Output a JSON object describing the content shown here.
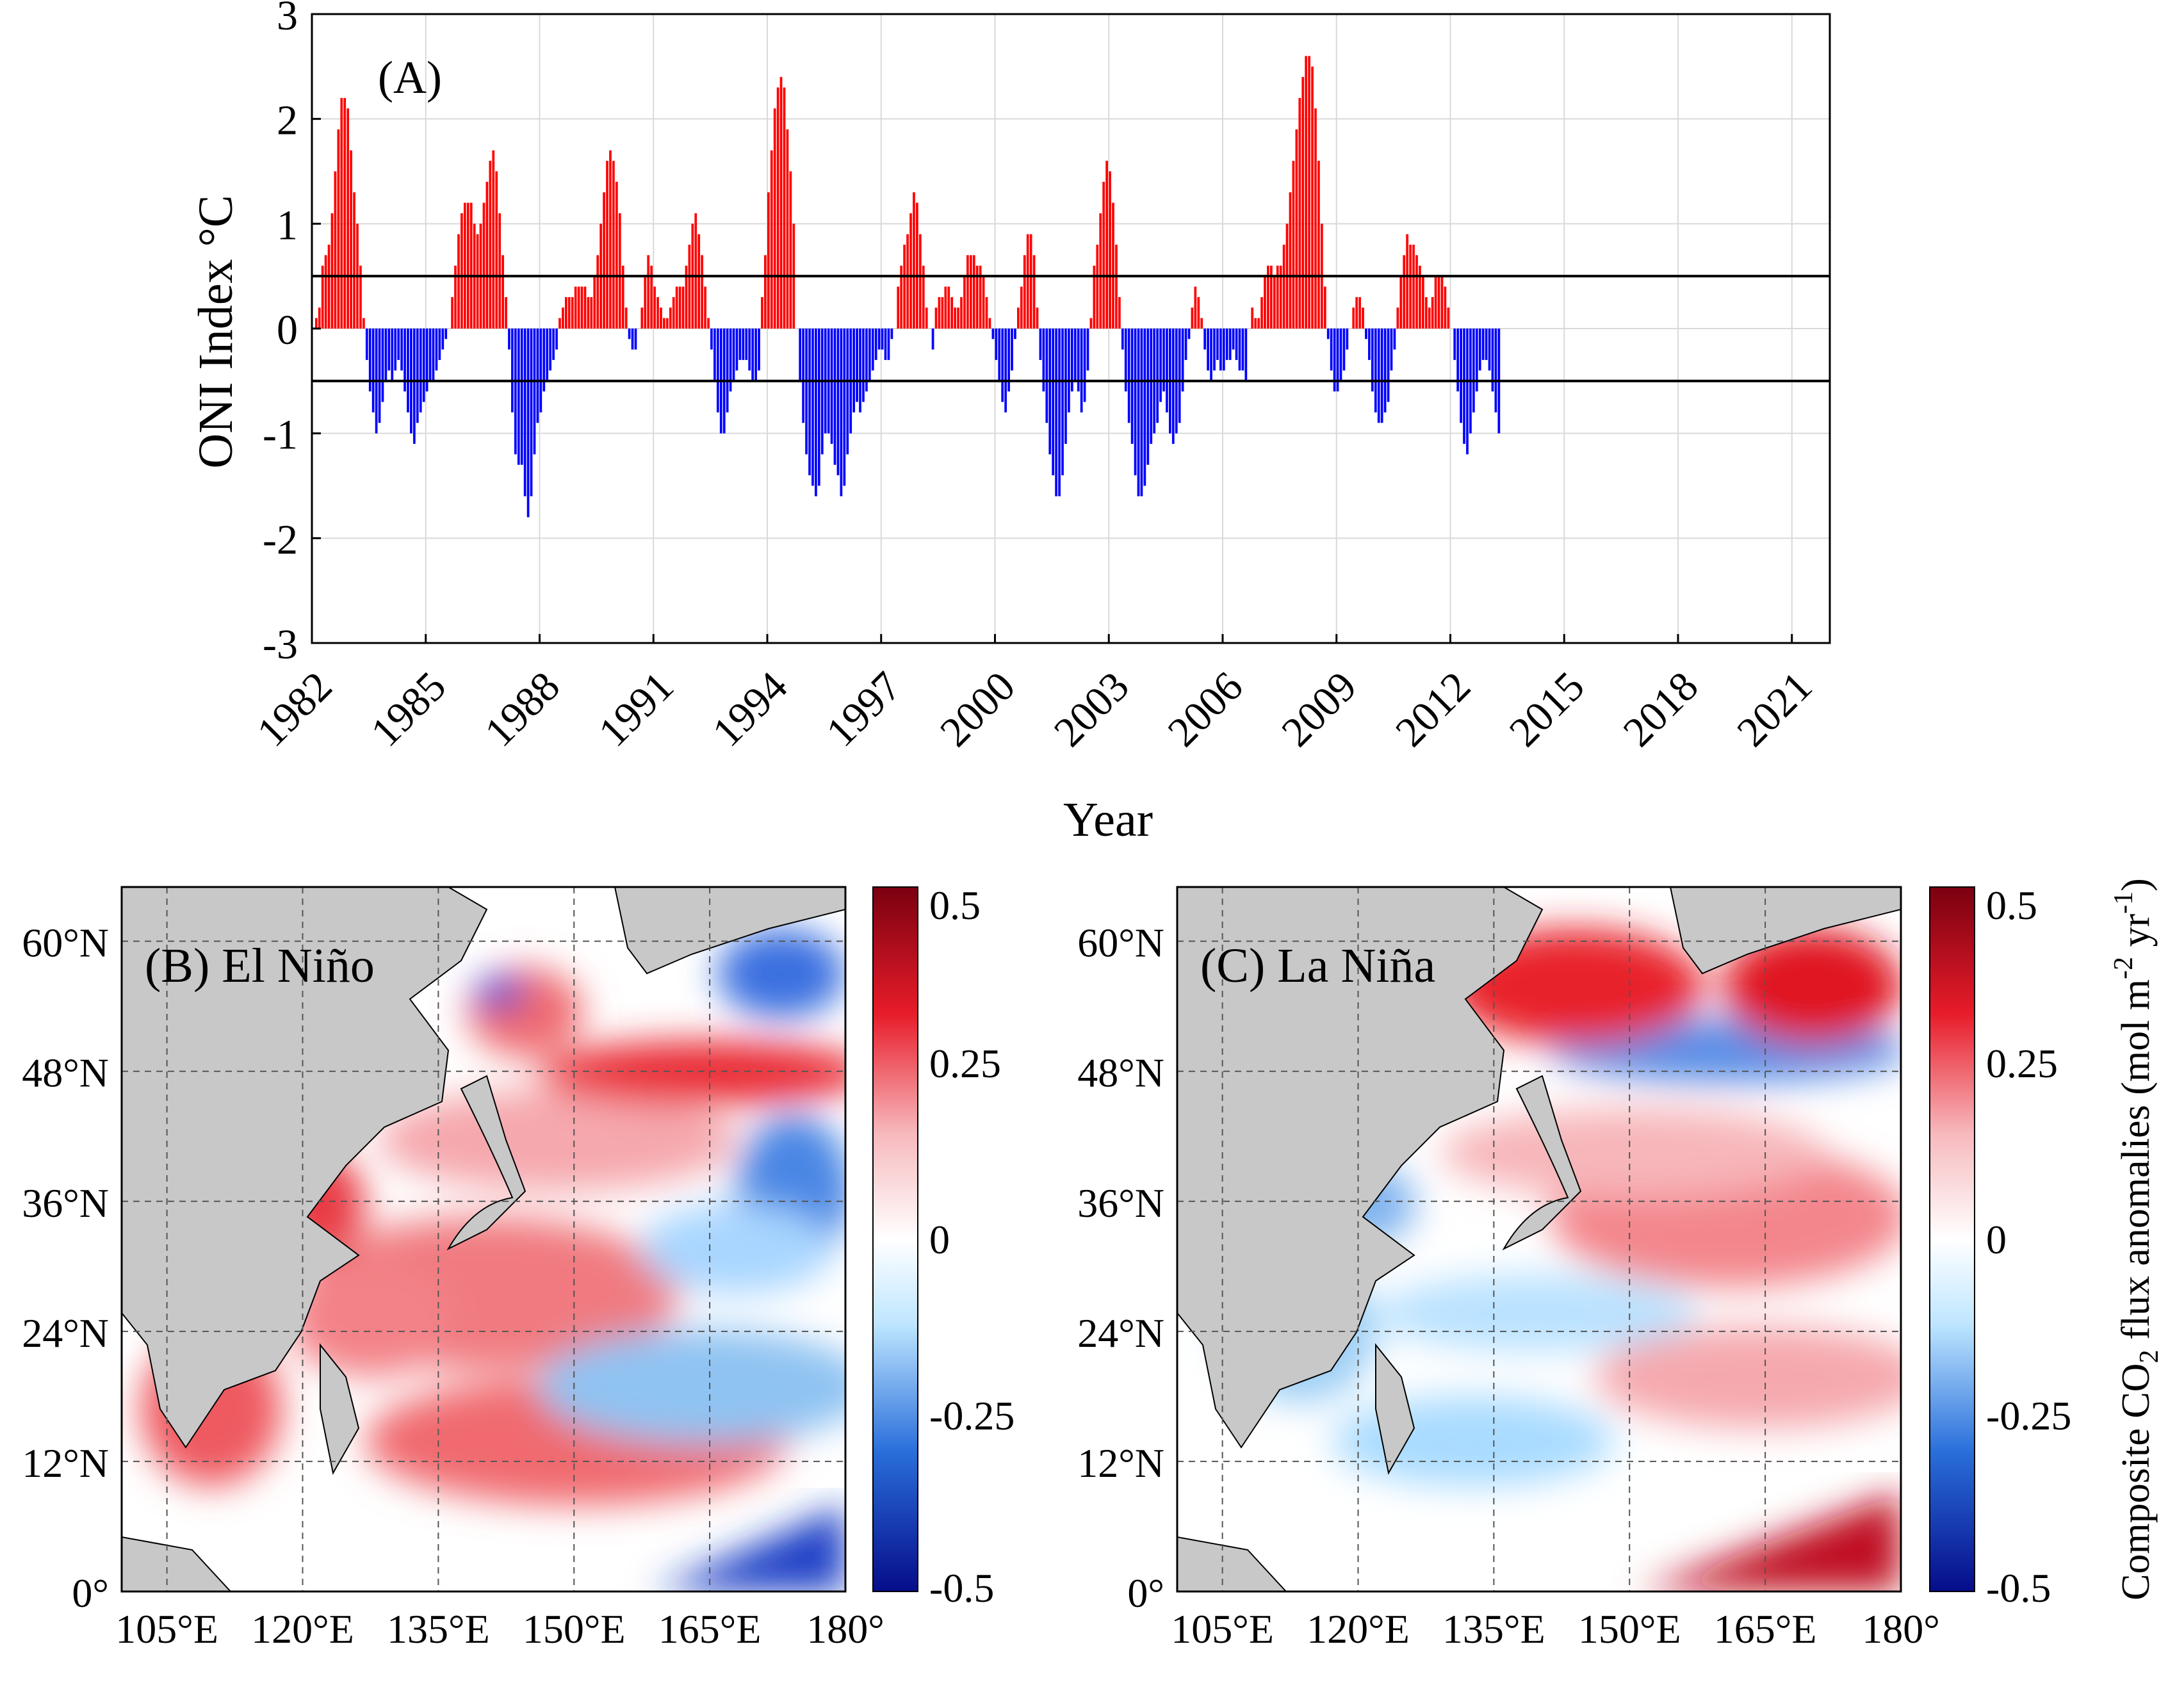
{
  "colors": {
    "positive": "#ff0000",
    "negative": "#0000ff",
    "land": "#c8c8c8",
    "threshold": "#000000",
    "grid": "#d9d9d9",
    "deep_red": "#7a0010",
    "red": "#e81c2a",
    "light_red": "#f7b9bd",
    "white": "#ffffff",
    "light_blue": "#bfe6ff",
    "blue": "#2a6fdb",
    "deep_blue": "#060c8a"
  },
  "chart_data": [
    {
      "id": "panel-a",
      "type": "bar",
      "panel_label": "(A)",
      "xlabel": "Year",
      "ylabel": "ONI Index °C",
      "xlim": [
        1982,
        2022
      ],
      "ylim": [
        -3,
        3
      ],
      "y_ticks": [
        "3",
        "2",
        "1",
        "0",
        "-1",
        "-2",
        "-3"
      ],
      "y_tick_values": [
        3,
        2,
        1,
        0,
        -1,
        -2,
        -3
      ],
      "x_ticks": [
        "1982",
        "1985",
        "1988",
        "1991",
        "1994",
        "1997",
        "2000",
        "2003",
        "2006",
        "2009",
        "2012",
        "2015",
        "2018",
        "2021"
      ],
      "x_tick_values": [
        1982,
        1985,
        1988,
        1991,
        1994,
        1997,
        2000,
        2003,
        2006,
        2009,
        2012,
        2015,
        2018,
        2021
      ],
      "thresholds": [
        0.5,
        -0.5
      ],
      "grid": true,
      "series": [
        {
          "name": "ONI (monthly)",
          "start": 1982.0,
          "step": 0.08333,
          "values": [
            0.0,
            0.1,
            0.2,
            0.6,
            0.7,
            0.8,
            1.1,
            1.5,
            1.9,
            2.2,
            2.2,
            2.1,
            1.7,
            1.3,
            1.0,
            0.6,
            0.1,
            -0.3,
            -0.6,
            -0.8,
            -1.0,
            -0.9,
            -0.7,
            -0.5,
            -0.4,
            -0.5,
            -0.4,
            -0.3,
            -0.4,
            -0.6,
            -0.8,
            -1.0,
            -1.1,
            -0.9,
            -0.8,
            -0.7,
            -0.6,
            -0.5,
            -0.5,
            -0.4,
            -0.3,
            -0.2,
            -0.1,
            0.0,
            0.3,
            0.6,
            0.9,
            1.1,
            1.2,
            1.2,
            1.2,
            1.0,
            0.9,
            1.0,
            1.2,
            1.4,
            1.6,
            1.7,
            1.5,
            1.1,
            0.7,
            0.3,
            -0.2,
            -0.8,
            -1.2,
            -1.3,
            -1.3,
            -1.6,
            -1.8,
            -1.6,
            -1.2,
            -0.9,
            -0.8,
            -0.6,
            -0.5,
            -0.4,
            -0.3,
            -0.2,
            0.1,
            0.2,
            0.3,
            0.3,
            0.3,
            0.4,
            0.4,
            0.4,
            0.4,
            0.3,
            0.3,
            0.5,
            0.7,
            1.0,
            1.3,
            1.6,
            1.7,
            1.6,
            1.4,
            1.1,
            0.6,
            0.2,
            -0.1,
            -0.2,
            -0.2,
            0.0,
            0.2,
            0.5,
            0.7,
            0.6,
            0.4,
            0.3,
            0.2,
            0.1,
            0.1,
            0.2,
            0.3,
            0.4,
            0.4,
            0.4,
            0.6,
            0.8,
            1.0,
            1.1,
            0.9,
            0.7,
            0.4,
            0.1,
            -0.2,
            -0.5,
            -0.8,
            -1.0,
            -1.0,
            -0.8,
            -0.6,
            -0.5,
            -0.4,
            -0.3,
            -0.3,
            -0.3,
            -0.4,
            -0.5,
            -0.5,
            -0.4,
            0.3,
            0.7,
            1.3,
            1.7,
            2.1,
            2.3,
            2.4,
            2.3,
            1.9,
            1.5,
            1.0,
            0.0,
            -0.5,
            -0.9,
            -1.2,
            -1.4,
            -1.5,
            -1.6,
            -1.5,
            -1.2,
            -1.0,
            -1.0,
            -1.1,
            -1.3,
            -1.4,
            -1.6,
            -1.5,
            -1.2,
            -1.0,
            -0.8,
            -0.7,
            -0.8,
            -0.7,
            -0.6,
            -0.5,
            -0.4,
            -0.3,
            -0.2,
            -0.2,
            -0.3,
            -0.3,
            -0.1,
            0.0,
            0.4,
            0.6,
            0.8,
            0.9,
            1.1,
            1.3,
            1.2,
            0.9,
            0.6,
            0.2,
            0.0,
            -0.2,
            0.2,
            0.3,
            0.3,
            0.4,
            0.4,
            0.3,
            0.2,
            0.2,
            0.3,
            0.5,
            0.7,
            0.7,
            0.7,
            0.6,
            0.6,
            0.5,
            0.3,
            0.1,
            -0.1,
            -0.3,
            -0.5,
            -0.7,
            -0.8,
            -0.6,
            -0.4,
            -0.1,
            0.2,
            0.4,
            0.7,
            0.9,
            0.9,
            0.7,
            0.2,
            -0.3,
            -0.6,
            -0.9,
            -1.2,
            -1.4,
            -1.6,
            -1.6,
            -1.4,
            -1.1,
            -0.8,
            -0.6,
            -0.5,
            -0.6,
            -0.8,
            -0.7,
            -0.4,
            0.1,
            0.6,
            0.8,
            1.1,
            1.4,
            1.6,
            1.5,
            1.2,
            0.8,
            0.3,
            -0.2,
            -0.6,
            -0.9,
            -1.1,
            -1.4,
            -1.6,
            -1.6,
            -1.5,
            -1.3,
            -1.1,
            -1.0,
            -0.9,
            -0.7,
            -0.6,
            -0.8,
            -1.0,
            -1.1,
            -1.0,
            -0.9,
            -0.6,
            -0.3,
            -0.1,
            0.2,
            0.4,
            0.3,
            0.1,
            -0.2,
            -0.4,
            -0.5,
            -0.4,
            -0.3,
            -0.4,
            -0.4,
            -0.3,
            -0.3,
            -0.2,
            -0.3,
            -0.4,
            -0.4,
            -0.5,
            0.0,
            0.2,
            0.1,
            0.1,
            0.3,
            0.5,
            0.6,
            0.6,
            0.5,
            0.6,
            0.6,
            0.8,
            1.0,
            1.3,
            1.6,
            1.9,
            2.2,
            2.4,
            2.6,
            2.6,
            2.5,
            2.1,
            1.6,
            1.0,
            0.4,
            -0.1,
            -0.4,
            -0.6,
            -0.6,
            -0.5,
            -0.4,
            -0.2,
            0.0,
            0.2,
            0.3,
            0.3,
            0.2,
            -0.1,
            -0.3,
            -0.6,
            -0.8,
            -0.9,
            -0.9,
            -0.8,
            -0.7,
            -0.4,
            -0.2,
            0.2,
            0.5,
            0.7,
            0.9,
            0.8,
            0.8,
            0.7,
            0.6,
            0.5,
            0.3,
            0.2,
            0.3,
            0.5,
            0.5,
            0.5,
            0.4,
            0.2,
            0.0,
            -0.3,
            -0.6,
            -0.9,
            -1.1,
            -1.2,
            -1.0,
            -0.8,
            -0.6,
            -0.4,
            -0.3,
            -0.3,
            -0.4,
            -0.6,
            -0.8,
            -1.0
          ]
        }
      ]
    },
    {
      "id": "panel-b",
      "type": "heatmap",
      "panel_label": "(B) El Niño",
      "x_ticks": [
        "105°E",
        "120°E",
        "135°E",
        "150°E",
        "165°E",
        "180°"
      ],
      "x_tick_values": [
        105,
        120,
        135,
        150,
        165,
        180
      ],
      "y_ticks": [
        "60°N",
        "48°N",
        "36°N",
        "24°N",
        "12°N",
        "0°"
      ],
      "y_tick_values": [
        60,
        48,
        36,
        24,
        12,
        0
      ],
      "xlim": [
        100,
        180
      ],
      "ylim": [
        0,
        65
      ],
      "colorbar": {
        "ticks": [
          "0.5",
          "0.25",
          "0",
          "-0.25",
          "-0.5"
        ],
        "tick_values": [
          0.5,
          0.25,
          0,
          -0.25,
          -0.5
        ],
        "range": [
          -0.5,
          0.5
        ]
      }
    },
    {
      "id": "panel-c",
      "type": "heatmap",
      "panel_label": "(C) La Niña",
      "x_ticks": [
        "105°E",
        "120°E",
        "135°E",
        "150°E",
        "165°E",
        "180°"
      ],
      "x_tick_values": [
        105,
        120,
        135,
        150,
        165,
        180
      ],
      "y_ticks": [
        "60°N",
        "48°N",
        "36°N",
        "24°N",
        "12°N",
        "0°"
      ],
      "y_tick_values": [
        60,
        48,
        36,
        24,
        12,
        0
      ],
      "xlim": [
        100,
        180
      ],
      "ylim": [
        0,
        65
      ],
      "colorbar": {
        "ticks": [
          "0.5",
          "0.25",
          "0",
          "-0.25",
          "-0.5"
        ],
        "tick_values": [
          0.5,
          0.25,
          0,
          -0.25,
          -0.5
        ],
        "range": [
          -0.5,
          0.5
        ],
        "label_main": "Composite CO",
        "label_sub": "2",
        "label_rest": " flux anomalies (mol m",
        "label_sup1": "-2",
        "label_mid": " yr",
        "label_sup2": "-1",
        "label_end": ")"
      }
    }
  ]
}
